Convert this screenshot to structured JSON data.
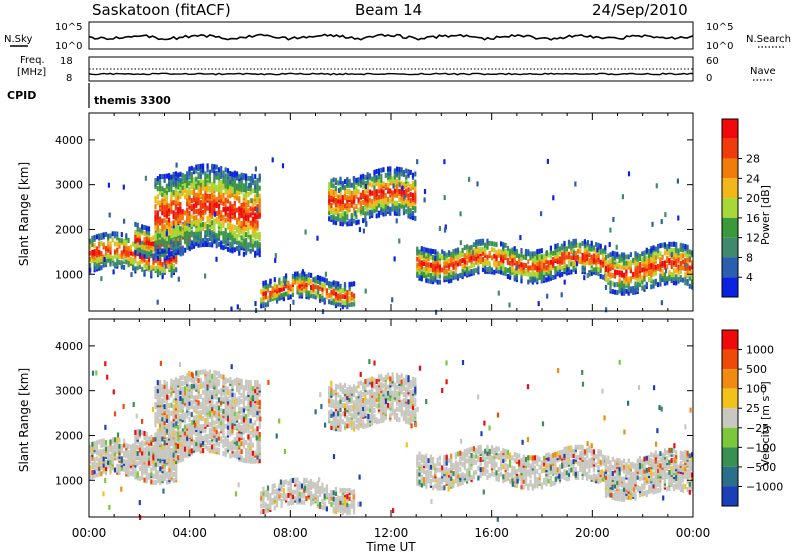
{
  "header": {
    "site": "Saskatoon (fitACF)",
    "beam": "Beam 14",
    "date": "24/Sep/2010"
  },
  "top_panels": {
    "nsky_label": "N.Sky",
    "nsky_ticks": [
      "10^5",
      "10^0"
    ],
    "nsearch_label": "N.Search",
    "nsearch_ticks": [
      "10^5",
      "10^0"
    ],
    "freq_label_1": "Freq.",
    "freq_label_2": "[MHz]",
    "freq_ticks": [
      "18",
      "8"
    ],
    "nave_label": "Nave",
    "nave_ticks": [
      "60",
      "0"
    ],
    "cpid_label": "CPID",
    "cpid_value": "themis 3300"
  },
  "colors": {
    "power": [
      "#0b22e0",
      "#2a5fb0",
      "#3f8a6e",
      "#3a9a3a",
      "#a8d838",
      "#f2b81a",
      "#f07d0a",
      "#f03c0a",
      "#f00a0a"
    ],
    "velocity": [
      "#1a3fb8",
      "#2c6f8a",
      "#3a9050",
      "#7cc83a",
      "#c8c8c0",
      "#f2c21c",
      "#f08a10",
      "#f04a0a",
      "#f00a0a"
    ]
  },
  "chart_data": [
    {
      "type": "heatmap",
      "name": "power",
      "xlabel": "",
      "ylabel": "Slant Range [km]",
      "x_ticks": [
        "00:00",
        "04:00",
        "08:00",
        "12:00",
        "16:00",
        "20:00",
        "00:00"
      ],
      "x_hours": [
        0,
        4,
        8,
        12,
        16,
        20,
        24
      ],
      "y_ticks": [
        1000,
        2000,
        3000,
        4000
      ],
      "ylim": [
        180,
        4600
      ],
      "xlim": [
        0,
        24
      ],
      "colorbar_label": "Power [dB]",
      "colorbar_ticks": [
        "4",
        "8",
        "12",
        "16",
        "20",
        "24",
        "28"
      ],
      "bands": [
        {
          "h0": 0.0,
          "h1": 3.5,
          "center": 1500,
          "width": 380
        },
        {
          "h0": 1.8,
          "h1": 4.0,
          "center": 1850,
          "width": 320
        },
        {
          "h0": 2.6,
          "h1": 6.8,
          "center": 2500,
          "width": 900
        },
        {
          "h0": 6.8,
          "h1": 10.5,
          "center": 700,
          "width": 250
        },
        {
          "h0": 9.5,
          "h1": 13.0,
          "center": 2800,
          "width": 500
        },
        {
          "h0": 13.0,
          "h1": 20.5,
          "center": 1350,
          "width": 350
        },
        {
          "h0": 20.5,
          "h1": 24.0,
          "center": 1200,
          "width": 450
        }
      ]
    },
    {
      "type": "heatmap",
      "name": "velocity",
      "xlabel": "Time UT",
      "ylabel": "Slant Range [km]",
      "x_ticks": [
        "00:00",
        "04:00",
        "08:00",
        "12:00",
        "16:00",
        "20:00",
        "00:00"
      ],
      "x_hours": [
        0,
        4,
        8,
        12,
        16,
        20,
        24
      ],
      "y_ticks": [
        1000,
        2000,
        3000,
        4000
      ],
      "ylim": [
        180,
        4600
      ],
      "xlim": [
        0,
        24
      ],
      "colorbar_label": "Velocity [m s⁻¹]",
      "colorbar_ticks": [
        "1000",
        "500",
        "100",
        "25",
        "−25",
        "−100",
        "−500",
        "−1000"
      ]
    }
  ]
}
